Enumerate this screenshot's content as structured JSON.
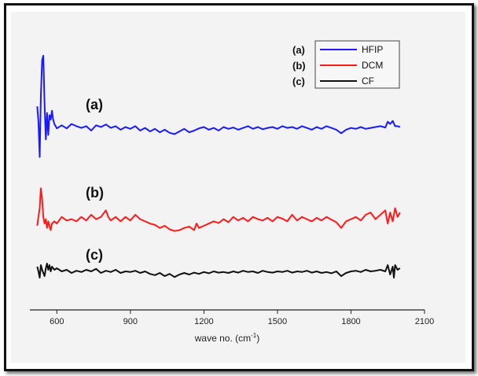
{
  "chart_data": {
    "type": "line",
    "xlabel": "wave no. (cm",
    "xlabel_sup": "-1",
    "xlabel_close": ")",
    "xlim": [
      490,
      2100
    ],
    "xticks": [
      "600",
      "900",
      "1200",
      "1500",
      "1800",
      "2100"
    ],
    "grid": false,
    "legend_placement": "top-right",
    "legend": [
      {
        "letter": "(a)",
        "name": "HFIP",
        "color": "#1a1aff"
      },
      {
        "letter": "(b)",
        "name": "DCM",
        "color": "#ff1a1a"
      },
      {
        "letter": "(c)",
        "name": "CF",
        "color": "#111111"
      }
    ],
    "curve_labels": [
      "(a)",
      "(b)",
      "(c)"
    ],
    "series": [
      {
        "name": "HFIP",
        "color": "#1a1aff",
        "x": [
          520,
          525,
          530,
          535,
          540,
          545,
          550,
          555,
          560,
          565,
          570,
          575,
          580,
          585,
          590,
          600,
          620,
          640,
          660,
          680,
          700,
          720,
          740,
          760,
          780,
          800,
          820,
          840,
          860,
          880,
          900,
          920,
          940,
          960,
          980,
          1000,
          1020,
          1040,
          1060,
          1080,
          1100,
          1120,
          1140,
          1160,
          1180,
          1200,
          1220,
          1240,
          1260,
          1280,
          1300,
          1320,
          1340,
          1360,
          1380,
          1400,
          1420,
          1440,
          1460,
          1480,
          1500,
          1520,
          1540,
          1560,
          1580,
          1600,
          1620,
          1640,
          1660,
          1680,
          1700,
          1720,
          1740,
          1760,
          1780,
          1800,
          1820,
          1840,
          1860,
          1880,
          1900,
          1920,
          1940,
          1950,
          1960,
          1970,
          1980,
          1990,
          2000
        ],
        "y": [
          0.55,
          0.2,
          -0.6,
          0.8,
          1.6,
          1.7,
          0.6,
          -0.2,
          0.4,
          -0.1,
          0.35,
          0.25,
          0.45,
          0.25,
          0.15,
          0.05,
          0.12,
          0.05,
          0.15,
          0.1,
          0.06,
          0.1,
          0.0,
          0.12,
          0.08,
          0.14,
          0.06,
          0.1,
          0.02,
          0.08,
          0.04,
          0.1,
          0.0,
          0.06,
          -0.02,
          0.04,
          -0.04,
          0.02,
          -0.05,
          -0.08,
          -0.02,
          0.04,
          -0.04,
          0.0,
          0.05,
          0.08,
          0.02,
          0.06,
          0.0,
          0.08,
          0.04,
          0.07,
          0.02,
          0.06,
          0.1,
          0.04,
          0.08,
          0.03,
          0.06,
          0.08,
          0.04,
          0.1,
          0.06,
          0.08,
          0.04,
          0.1,
          0.06,
          0.02,
          0.08,
          0.04,
          0.1,
          0.06,
          0.02,
          -0.06,
          0.02,
          0.06,
          0.04,
          0.08,
          0.04,
          0.06,
          0.08,
          0.1,
          0.07,
          0.2,
          0.15,
          0.22,
          0.1,
          0.1,
          0.08
        ]
      },
      {
        "name": "DCM",
        "color": "#ff1a1a",
        "x": [
          520,
          525,
          530,
          535,
          540,
          545,
          550,
          555,
          560,
          565,
          570,
          575,
          580,
          590,
          600,
          620,
          640,
          660,
          680,
          700,
          720,
          740,
          760,
          780,
          800,
          810,
          820,
          840,
          860,
          880,
          900,
          920,
          940,
          960,
          980,
          1000,
          1020,
          1040,
          1060,
          1080,
          1100,
          1120,
          1140,
          1160,
          1170,
          1180,
          1200,
          1220,
          1240,
          1260,
          1280,
          1300,
          1320,
          1340,
          1360,
          1380,
          1400,
          1420,
          1440,
          1460,
          1480,
          1500,
          1520,
          1540,
          1560,
          1580,
          1600,
          1620,
          1640,
          1660,
          1680,
          1700,
          1720,
          1740,
          1760,
          1780,
          1800,
          1820,
          1840,
          1860,
          1880,
          1900,
          1920,
          1940,
          1950,
          1960,
          1970,
          1980,
          1990,
          2000
        ],
        "y": [
          0.0,
          0.2,
          0.4,
          0.85,
          0.6,
          0.2,
          0.05,
          0.15,
          -0.05,
          0.1,
          0.0,
          -0.1,
          0.05,
          0.1,
          0.05,
          0.2,
          0.12,
          0.15,
          0.1,
          0.2,
          0.12,
          0.25,
          0.15,
          0.2,
          0.35,
          0.2,
          0.12,
          0.2,
          0.1,
          0.2,
          0.12,
          0.25,
          0.15,
          0.1,
          0.05,
          0.02,
          -0.05,
          0.0,
          -0.08,
          -0.12,
          -0.1,
          -0.05,
          -0.02,
          -0.1,
          0.05,
          -0.05,
          0.0,
          0.05,
          0.1,
          0.06,
          0.15,
          0.08,
          0.2,
          0.12,
          0.18,
          0.1,
          0.2,
          0.15,
          0.12,
          0.18,
          0.1,
          0.2,
          0.16,
          0.1,
          0.25,
          0.12,
          0.2,
          0.15,
          0.1,
          0.18,
          0.12,
          0.2,
          0.14,
          0.08,
          -0.05,
          0.1,
          0.15,
          0.2,
          0.12,
          0.25,
          0.3,
          0.15,
          0.25,
          0.35,
          0.05,
          0.3,
          0.1,
          0.4,
          0.2,
          0.3
        ]
      },
      {
        "name": "CF",
        "color": "#111111",
        "x": [
          520,
          525,
          530,
          535,
          540,
          545,
          550,
          555,
          560,
          565,
          570,
          575,
          580,
          590,
          600,
          620,
          640,
          660,
          680,
          700,
          720,
          740,
          760,
          780,
          800,
          820,
          840,
          860,
          880,
          900,
          920,
          940,
          960,
          980,
          1000,
          1020,
          1040,
          1060,
          1080,
          1100,
          1120,
          1140,
          1160,
          1180,
          1200,
          1220,
          1240,
          1260,
          1280,
          1300,
          1320,
          1340,
          1360,
          1380,
          1400,
          1420,
          1440,
          1460,
          1480,
          1500,
          1520,
          1540,
          1560,
          1580,
          1600,
          1620,
          1640,
          1660,
          1680,
          1700,
          1720,
          1740,
          1760,
          1780,
          1800,
          1820,
          1840,
          1860,
          1880,
          1900,
          1920,
          1940,
          1950,
          1960,
          1970,
          1975,
          1980,
          1990,
          2000
        ],
        "y": [
          0.25,
          0.1,
          -0.1,
          0.3,
          0.15,
          0.05,
          -0.05,
          0.2,
          0.35,
          0.15,
          0.3,
          0.1,
          0.25,
          0.15,
          0.2,
          0.1,
          0.15,
          0.05,
          0.12,
          0.08,
          0.15,
          0.1,
          0.18,
          0.05,
          0.12,
          0.08,
          0.15,
          0.05,
          0.1,
          0.08,
          0.12,
          0.05,
          0.1,
          0.02,
          -0.02,
          0.05,
          -0.05,
          0.02,
          -0.08,
          0.0,
          0.05,
          0.0,
          0.06,
          0.02,
          0.08,
          0.04,
          0.1,
          0.06,
          0.08,
          0.05,
          0.1,
          0.06,
          0.12,
          0.08,
          0.1,
          0.05,
          0.12,
          0.08,
          0.06,
          0.1,
          0.08,
          0.12,
          0.06,
          0.1,
          0.08,
          0.12,
          0.06,
          0.1,
          0.05,
          0.08,
          0.04,
          0.1,
          -0.05,
          0.05,
          0.1,
          0.12,
          0.08,
          0.15,
          0.1,
          0.12,
          0.15,
          0.1,
          0.3,
          0.0,
          0.25,
          -0.1,
          0.3,
          0.15,
          0.2
        ]
      }
    ]
  }
}
